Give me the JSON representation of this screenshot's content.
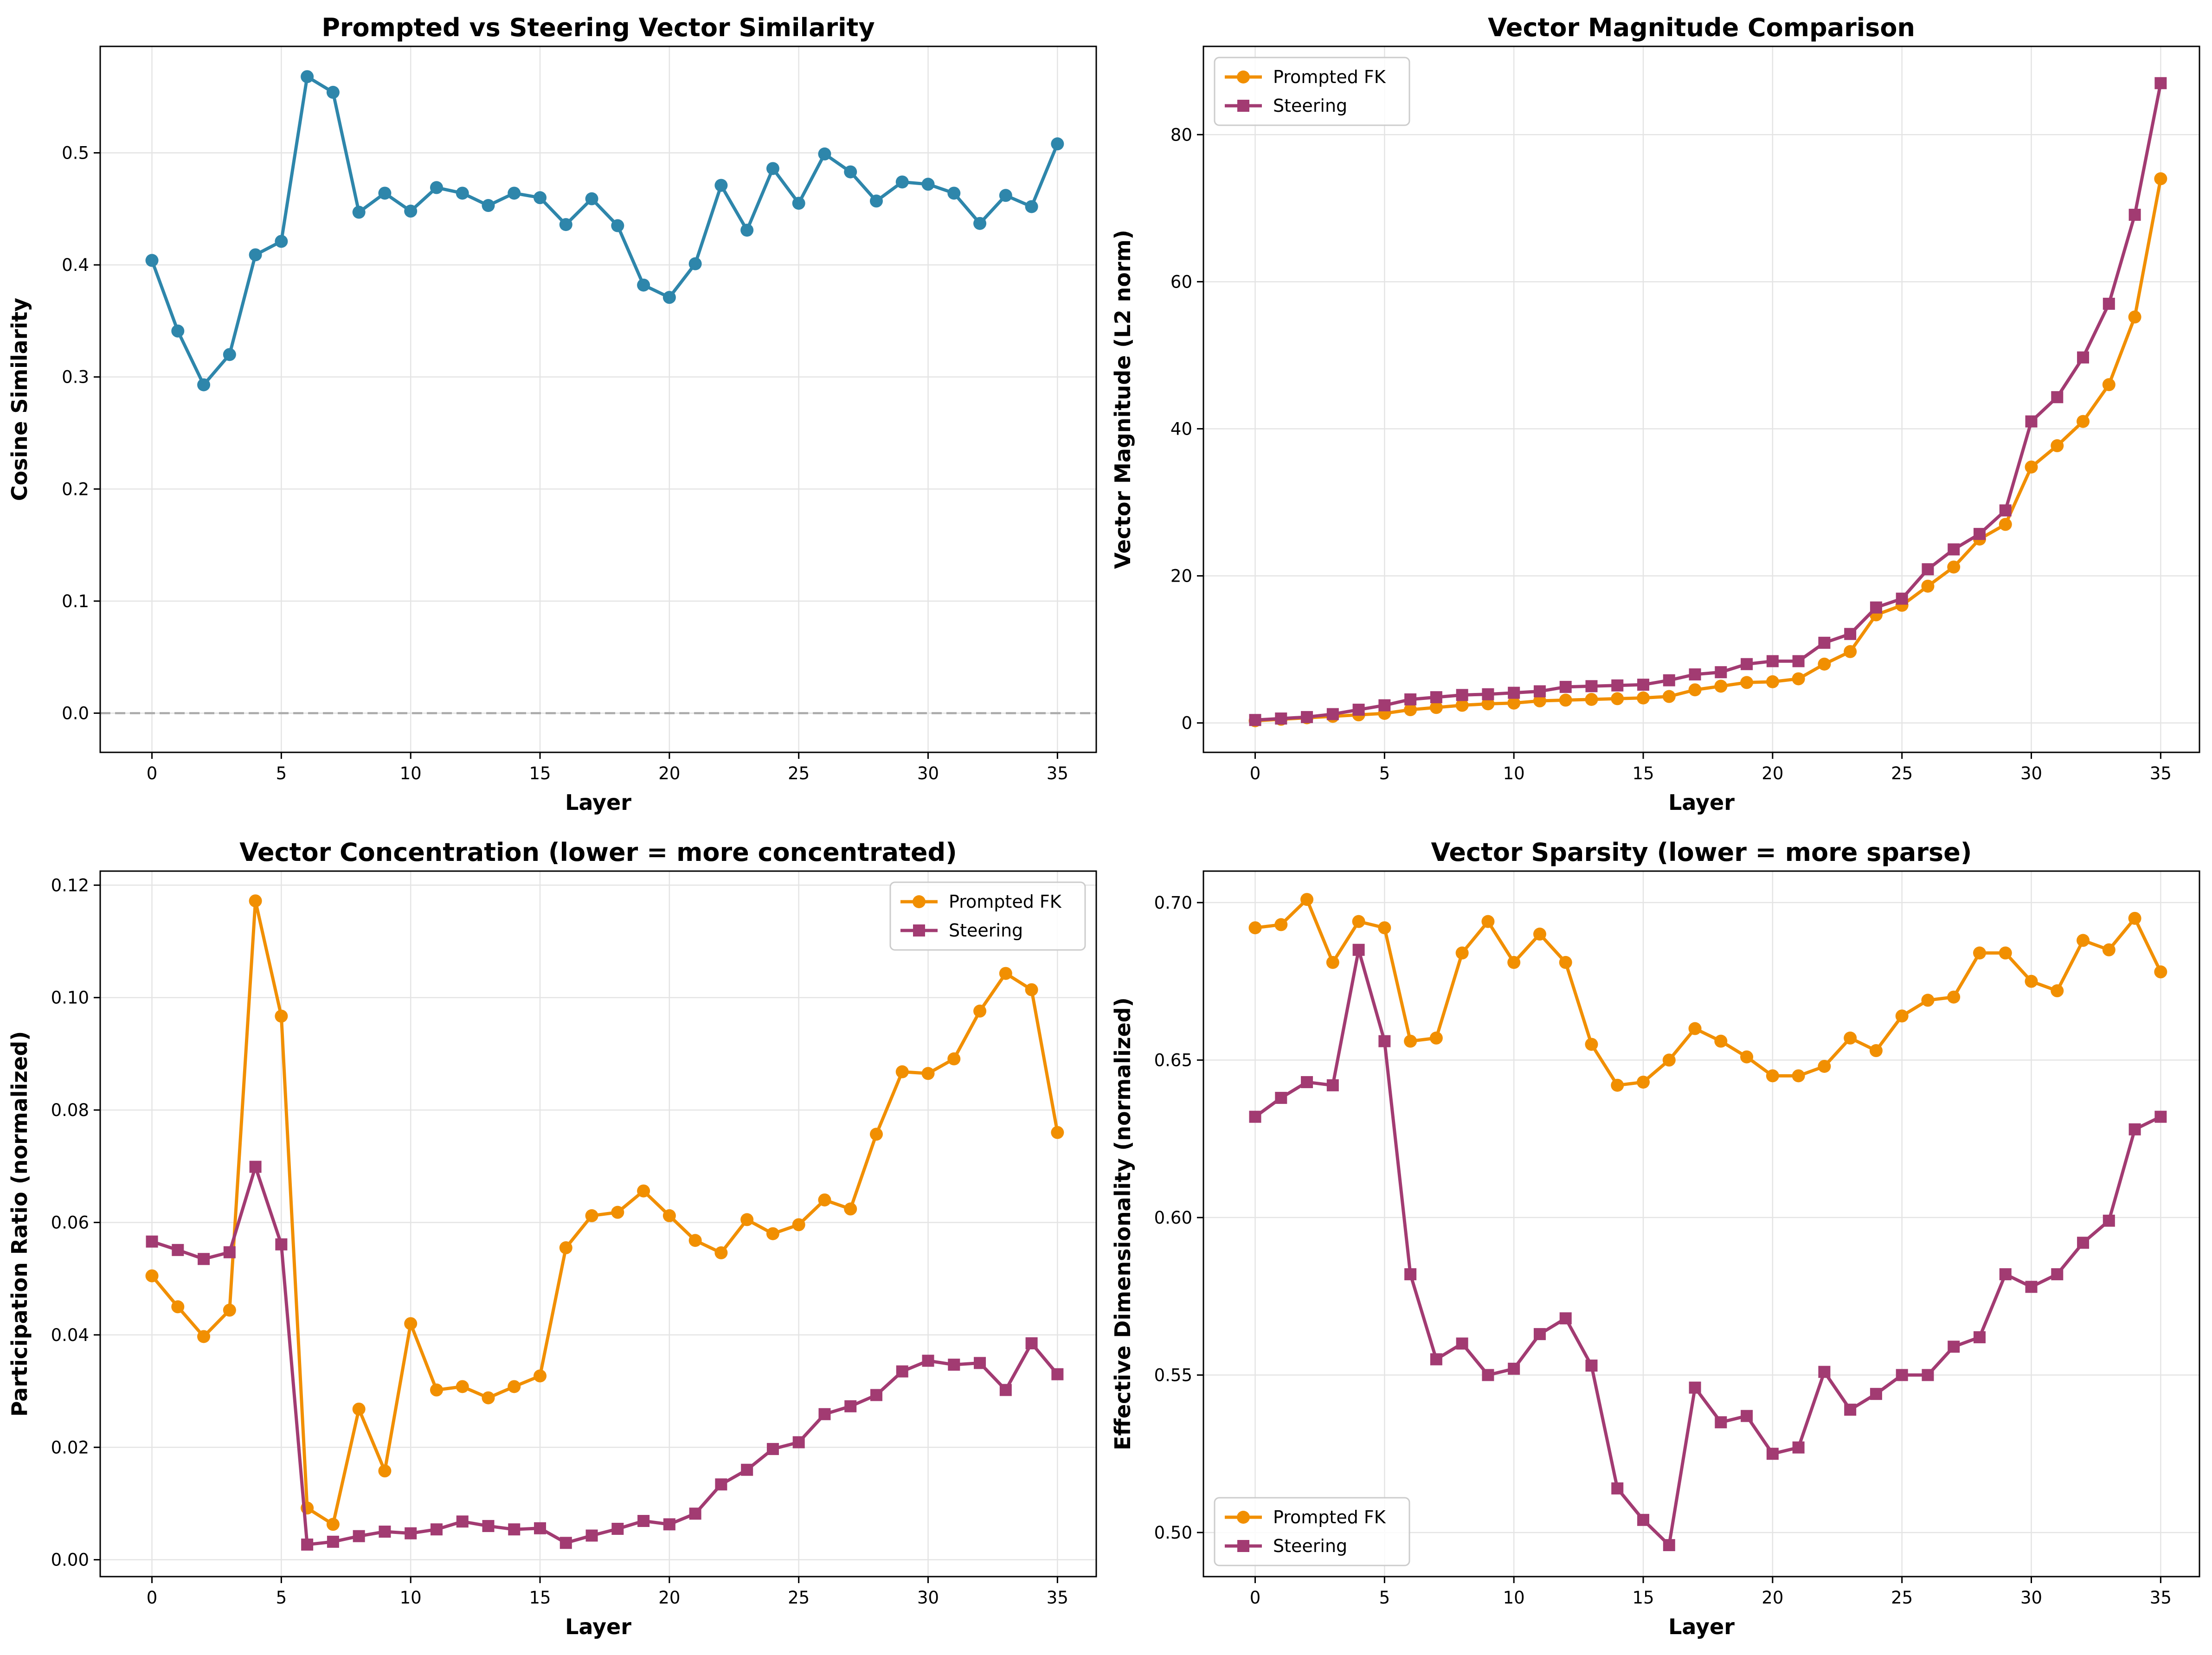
{
  "chart_data": [
    {
      "type": "line",
      "title": "Prompted vs Steering Vector Similarity",
      "xlabel": "Layer",
      "ylabel": "Cosine Similarity",
      "xlim": [
        -2,
        36.5
      ],
      "ylim": [
        -0.035,
        0.595
      ],
      "xticks": [
        0,
        5,
        10,
        15,
        20,
        25,
        30,
        35
      ],
      "yticks": [
        0.0,
        0.1,
        0.2,
        0.3,
        0.4,
        0.5
      ],
      "ytick_decimals": 1,
      "grid": true,
      "legend": "none",
      "reference_line": {
        "y": 0.0,
        "style": "dashed",
        "color": "#aaaaaa"
      },
      "x": [
        0,
        1,
        2,
        3,
        4,
        5,
        6,
        7,
        8,
        9,
        10,
        11,
        12,
        13,
        14,
        15,
        16,
        17,
        18,
        19,
        20,
        21,
        22,
        23,
        24,
        25,
        26,
        27,
        28,
        29,
        30,
        31,
        32,
        33,
        34,
        35
      ],
      "series": [
        {
          "marker": "circle",
          "color": "#2e86ab",
          "values": [
            0.404,
            0.341,
            0.293,
            0.32,
            0.409,
            0.421,
            0.568,
            0.554,
            0.447,
            0.464,
            0.448,
            0.469,
            0.464,
            0.453,
            0.464,
            0.46,
            0.436,
            0.459,
            0.435,
            0.382,
            0.371,
            0.401,
            0.471,
            0.431,
            0.486,
            0.455,
            0.499,
            0.483,
            0.457,
            0.474,
            0.472,
            0.464,
            0.437,
            0.462,
            0.452,
            0.508
          ]
        }
      ]
    },
    {
      "type": "line",
      "title": "Vector Magnitude Comparison",
      "xlabel": "Layer",
      "ylabel": "Vector Magnitude (L2 norm)",
      "xlim": [
        -2,
        36.5
      ],
      "ylim": [
        -4,
        92
      ],
      "xticks": [
        0,
        5,
        10,
        15,
        20,
        25,
        30,
        35
      ],
      "yticks": [
        0,
        20,
        40,
        60,
        80
      ],
      "ytick_decimals": 0,
      "grid": true,
      "legend": "top-left",
      "x": [
        0,
        1,
        2,
        3,
        4,
        5,
        6,
        7,
        8,
        9,
        10,
        11,
        12,
        13,
        14,
        15,
        16,
        17,
        18,
        19,
        20,
        21,
        22,
        23,
        24,
        25,
        26,
        27,
        28,
        29,
        30,
        31,
        32,
        33,
        34,
        35
      ],
      "series": [
        {
          "name": "Prompted FK",
          "marker": "circle",
          "color": "#f18f01",
          "values": [
            0.3,
            0.5,
            0.7,
            0.9,
            1.1,
            1.3,
            1.8,
            2.1,
            2.4,
            2.6,
            2.7,
            3.0,
            3.1,
            3.2,
            3.3,
            3.4,
            3.6,
            4.5,
            5.0,
            5.5,
            5.6,
            6.0,
            8.0,
            9.7,
            14.7,
            16.0,
            18.6,
            21.2,
            25.0,
            27.0,
            34.8,
            37.7,
            41.0,
            46.0,
            55.2,
            74.0
          ]
        },
        {
          "name": "Steering",
          "marker": "square",
          "color": "#a23b72",
          "values": [
            0.4,
            0.6,
            0.8,
            1.2,
            1.8,
            2.4,
            3.2,
            3.5,
            3.8,
            3.9,
            4.1,
            4.3,
            4.9,
            5.0,
            5.1,
            5.2,
            5.8,
            6.6,
            6.9,
            8.0,
            8.4,
            8.4,
            10.9,
            12.1,
            15.7,
            16.9,
            20.9,
            23.6,
            25.7,
            28.9,
            41.0,
            44.3,
            49.7,
            57.0,
            69.1,
            87.0
          ]
        }
      ]
    },
    {
      "type": "line",
      "title": "Vector Concentration (lower = more concentrated)",
      "xlabel": "Layer",
      "ylabel": "Participation Ratio (normalized)",
      "xlim": [
        -2,
        36.5
      ],
      "ylim": [
        -0.003,
        0.1225
      ],
      "xticks": [
        0,
        5,
        10,
        15,
        20,
        25,
        30,
        35
      ],
      "yticks": [
        0.0,
        0.02,
        0.04,
        0.06,
        0.08,
        0.1,
        0.12
      ],
      "ytick_decimals": 2,
      "grid": true,
      "legend": "top-right",
      "x": [
        0,
        1,
        2,
        3,
        4,
        5,
        6,
        7,
        8,
        9,
        10,
        11,
        12,
        13,
        14,
        15,
        16,
        17,
        18,
        19,
        20,
        21,
        22,
        23,
        24,
        25,
        26,
        27,
        28,
        29,
        30,
        31,
        32,
        33,
        34,
        35
      ],
      "series": [
        {
          "name": "Prompted FK",
          "marker": "circle",
          "color": "#f18f01",
          "values": [
            0.0505,
            0.045,
            0.0397,
            0.0444,
            0.1172,
            0.0967,
            0.0092,
            0.0063,
            0.0268,
            0.0158,
            0.042,
            0.0302,
            0.0308,
            0.0288,
            0.0308,
            0.0327,
            0.0555,
            0.0612,
            0.0618,
            0.0656,
            0.0612,
            0.0568,
            0.0546,
            0.0605,
            0.058,
            0.0596,
            0.064,
            0.0624,
            0.0757,
            0.0868,
            0.0865,
            0.0891,
            0.0976,
            0.1043,
            0.1014,
            0.076
          ]
        },
        {
          "name": "Steering",
          "marker": "square",
          "color": "#a23b72",
          "values": [
            0.0566,
            0.0551,
            0.0535,
            0.0547,
            0.0699,
            0.0561,
            0.0027,
            0.0032,
            0.0042,
            0.005,
            0.0047,
            0.0054,
            0.0068,
            0.006,
            0.0054,
            0.0056,
            0.003,
            0.0043,
            0.0055,
            0.0069,
            0.0063,
            0.0082,
            0.0134,
            0.016,
            0.0197,
            0.0209,
            0.0259,
            0.0273,
            0.0293,
            0.0335,
            0.0354,
            0.0347,
            0.035,
            0.0302,
            0.0385,
            0.033
          ]
        }
      ]
    },
    {
      "type": "line",
      "title": "Vector Sparsity (lower = more sparse)",
      "xlabel": "Layer",
      "ylabel": "Effective Dimensionality (normalized)",
      "xlim": [
        -2,
        36.5
      ],
      "ylim": [
        0.486,
        0.71
      ],
      "xticks": [
        0,
        5,
        10,
        15,
        20,
        25,
        30,
        35
      ],
      "yticks": [
        0.5,
        0.55,
        0.6,
        0.65,
        0.7
      ],
      "ytick_decimals": 2,
      "grid": true,
      "legend": "bottom-left",
      "x": [
        0,
        1,
        2,
        3,
        4,
        5,
        6,
        7,
        8,
        9,
        10,
        11,
        12,
        13,
        14,
        15,
        16,
        17,
        18,
        19,
        20,
        21,
        22,
        23,
        24,
        25,
        26,
        27,
        28,
        29,
        30,
        31,
        32,
        33,
        34,
        35
      ],
      "series": [
        {
          "name": "Prompted FK",
          "marker": "circle",
          "color": "#f18f01",
          "values": [
            0.692,
            0.693,
            0.701,
            0.681,
            0.694,
            0.692,
            0.656,
            0.657,
            0.684,
            0.694,
            0.681,
            0.69,
            0.681,
            0.655,
            0.642,
            0.643,
            0.65,
            0.66,
            0.656,
            0.651,
            0.645,
            0.645,
            0.648,
            0.657,
            0.653,
            0.664,
            0.669,
            0.67,
            0.684,
            0.684,
            0.675,
            0.672,
            0.688,
            0.685,
            0.695,
            0.678
          ]
        },
        {
          "name": "Steering",
          "marker": "square",
          "color": "#a23b72",
          "values": [
            0.632,
            0.638,
            0.643,
            0.642,
            0.685,
            0.656,
            0.582,
            0.555,
            0.56,
            0.55,
            0.552,
            0.563,
            0.568,
            0.553,
            0.514,
            0.504,
            0.496,
            0.546,
            0.535,
            0.537,
            0.525,
            0.527,
            0.551,
            0.539,
            0.544,
            0.55,
            0.55,
            0.559,
            0.562,
            0.582,
            0.578,
            0.582,
            0.592,
            0.599,
            0.628,
            0.632
          ]
        }
      ]
    }
  ]
}
